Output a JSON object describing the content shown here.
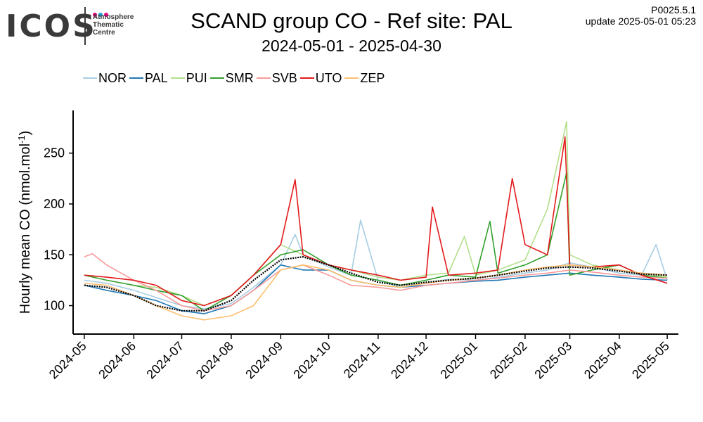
{
  "logo": {
    "word": "ICOS",
    "line1": "Atmosphere",
    "line2": "Thematic",
    "line3": "Centre",
    "dot_colors": [
      "#e5007e",
      "#1fa2e0",
      "#e5007e"
    ]
  },
  "header": {
    "version": "P0025.5.1",
    "update": "update  2025-05-01 05:23"
  },
  "chart_data": {
    "type": "line",
    "title": "SCAND group CO - Ref site: PAL",
    "subtitle": "2024-05-01 - 2025-04-30",
    "ylabel": "Hourly mean  CO (nmol.mol",
    "ylabel_sup": "-1",
    "ylabel_close": ")",
    "xlabel": "",
    "ylim": [
      72,
      292
    ],
    "xlim": [
      "2024-04-24",
      "2025-05-08"
    ],
    "y_ticks": [
      100,
      150,
      200,
      250
    ],
    "x_ticks": [
      "2024-05-01",
      "2024-06-01",
      "2024-07-01",
      "2024-08-01",
      "2024-09-01",
      "2024-10-01",
      "2024-11-01",
      "2024-12-01",
      "2025-01-01",
      "2025-02-01",
      "2025-03-01",
      "2025-04-01",
      "2025-05-01"
    ],
    "x_tick_labels": [
      "2024-05",
      "2024-06",
      "2024-07",
      "2024-08",
      "2024-09",
      "2024-10",
      "2024-11",
      "2024-12",
      "2025-01",
      "2025-02",
      "2025-03",
      "2025-04",
      "2025-05"
    ],
    "grid": false,
    "legend": {
      "position": "top-left"
    },
    "reference_line": {
      "name": "",
      "color": "#000000",
      "style": "dotted-thick",
      "x": [
        "2024-05-01",
        "2024-05-15",
        "2024-06-01",
        "2024-06-15",
        "2024-07-01",
        "2024-07-15",
        "2024-08-01",
        "2024-08-15",
        "2024-09-01",
        "2024-09-15",
        "2024-10-01",
        "2024-10-15",
        "2024-11-01",
        "2024-11-15",
        "2024-12-01",
        "2024-12-15",
        "2025-01-01",
        "2025-01-15",
        "2025-02-01",
        "2025-02-15",
        "2025-03-01",
        "2025-03-15",
        "2025-04-01",
        "2025-04-15",
        "2025-05-01"
      ],
      "y": [
        120,
        118,
        110,
        100,
        95,
        95,
        105,
        125,
        145,
        148,
        140,
        132,
        123,
        120,
        123,
        125,
        127,
        130,
        134,
        137,
        138,
        137,
        134,
        131,
        130
      ]
    },
    "series": [
      {
        "name": "NOR",
        "color": "#a6cee3",
        "x": [
          "2024-05-01",
          "2024-05-15",
          "2024-06-01",
          "2024-06-15",
          "2024-07-01",
          "2024-07-15",
          "2024-08-01",
          "2024-08-15",
          "2024-09-01",
          "2024-09-10",
          "2024-09-15",
          "2024-10-01",
          "2024-10-15",
          "2024-10-21",
          "2024-11-01",
          "2024-11-15",
          "2024-12-01",
          "2024-12-15",
          "2025-01-01",
          "2025-01-15",
          "2025-02-01",
          "2025-02-15",
          "2025-03-01",
          "2025-03-15",
          "2025-04-01",
          "2025-04-15",
          "2025-04-24",
          "2025-05-01"
        ],
        "y": [
          125,
          122,
          115,
          108,
          100,
          97,
          102,
          118,
          140,
          170,
          150,
          138,
          130,
          184,
          125,
          118,
          122,
          126,
          125,
          128,
          132,
          135,
          142,
          138,
          132,
          130,
          160,
          125
        ]
      },
      {
        "name": "PAL",
        "color": "#1f78b4",
        "x": [
          "2024-05-01",
          "2024-05-15",
          "2024-06-01",
          "2024-06-15",
          "2024-07-01",
          "2024-07-15",
          "2024-08-01",
          "2024-08-15",
          "2024-09-01",
          "2024-09-15",
          "2024-10-01",
          "2024-10-15",
          "2024-11-01",
          "2024-11-15",
          "2024-12-01",
          "2024-12-15",
          "2025-01-01",
          "2025-01-15",
          "2025-02-01",
          "2025-02-15",
          "2025-03-01",
          "2025-03-15",
          "2025-04-01",
          "2025-04-15",
          "2025-05-01"
        ],
        "y": [
          120,
          115,
          110,
          105,
          95,
          92,
          100,
          115,
          140,
          135,
          135,
          125,
          120,
          118,
          120,
          122,
          124,
          125,
          128,
          130,
          132,
          130,
          128,
          126,
          125
        ]
      },
      {
        "name": "PUI",
        "color": "#b2df8a",
        "x": [
          "2024-05-01",
          "2024-05-15",
          "2024-06-01",
          "2024-06-15",
          "2024-07-01",
          "2024-07-15",
          "2024-08-01",
          "2024-08-15",
          "2024-09-01",
          "2024-09-15",
          "2024-10-01",
          "2024-10-15",
          "2024-11-01",
          "2024-11-15",
          "2024-12-01",
          "2024-12-15",
          "2024-12-25",
          "2025-01-01",
          "2025-01-15",
          "2025-02-01",
          "2025-02-15",
          "2025-02-27",
          "2025-03-01",
          "2025-03-15",
          "2025-04-01",
          "2025-04-15",
          "2025-05-01"
        ],
        "y": [
          130,
          125,
          120,
          118,
          110,
          100,
          110,
          130,
          160,
          150,
          140,
          135,
          128,
          125,
          130,
          132,
          168,
          130,
          135,
          145,
          195,
          281,
          150,
          140,
          135,
          132,
          128
        ]
      },
      {
        "name": "SMR",
        "color": "#33a02c",
        "x": [
          "2024-05-01",
          "2024-05-15",
          "2024-06-01",
          "2024-06-15",
          "2024-07-01",
          "2024-07-15",
          "2024-08-01",
          "2024-08-15",
          "2024-09-01",
          "2024-09-15",
          "2024-10-01",
          "2024-10-15",
          "2024-11-01",
          "2024-11-15",
          "2024-12-01",
          "2024-12-15",
          "2025-01-01",
          "2025-01-10",
          "2025-01-15",
          "2025-02-01",
          "2025-02-15",
          "2025-02-27",
          "2025-03-01",
          "2025-03-15",
          "2025-04-01",
          "2025-04-15",
          "2025-05-01"
        ],
        "y": [
          130,
          125,
          120,
          115,
          110,
          95,
          110,
          130,
          150,
          155,
          140,
          130,
          125,
          120,
          125,
          130,
          128,
          183,
          132,
          140,
          150,
          231,
          130,
          135,
          140,
          130,
          127
        ]
      },
      {
        "name": "SVB",
        "color": "#fb9a99",
        "x": [
          "2024-05-01",
          "2024-05-06",
          "2024-05-15",
          "2024-06-01",
          "2024-06-15",
          "2024-07-01",
          "2024-07-15",
          "2024-08-01",
          "2024-08-15",
          "2024-09-01",
          "2024-09-15",
          "2024-10-01",
          "2024-10-15",
          "2024-11-01",
          "2024-11-15",
          "2024-12-01",
          "2024-12-15",
          "2025-01-01",
          "2025-01-15",
          "2025-02-01",
          "2025-02-15",
          "2025-03-01",
          "2025-03-15",
          "2025-04-01",
          "2025-04-15",
          "2025-05-01"
        ],
        "y": [
          148,
          151,
          140,
          125,
          115,
          100,
          95,
          100,
          115,
          135,
          140,
          130,
          120,
          118,
          115,
          120,
          122,
          125,
          127,
          130,
          132,
          135,
          133,
          130,
          128,
          127
        ]
      },
      {
        "name": "UTO",
        "color": "#e31a1c",
        "x": [
          "2024-05-01",
          "2024-05-15",
          "2024-06-01",
          "2024-06-15",
          "2024-07-01",
          "2024-07-15",
          "2024-08-01",
          "2024-08-15",
          "2024-09-01",
          "2024-09-10",
          "2024-09-15",
          "2024-10-01",
          "2024-10-15",
          "2024-11-01",
          "2024-11-15",
          "2024-12-01",
          "2024-12-05",
          "2024-12-15",
          "2025-01-01",
          "2025-01-15",
          "2025-01-24",
          "2025-02-01",
          "2025-02-15",
          "2025-02-26",
          "2025-03-01",
          "2025-03-15",
          "2025-04-01",
          "2025-04-15",
          "2025-05-01"
        ],
        "y": [
          130,
          128,
          125,
          120,
          105,
          100,
          110,
          130,
          160,
          224,
          150,
          140,
          135,
          130,
          125,
          128,
          197,
          130,
          132,
          135,
          225,
          160,
          150,
          266,
          140,
          138,
          140,
          130,
          122
        ]
      },
      {
        "name": "ZEP",
        "color": "#fdbf6f",
        "x": [
          "2024-05-01",
          "2024-05-15",
          "2024-06-01",
          "2024-06-15",
          "2024-07-01",
          "2024-07-15",
          "2024-08-01",
          "2024-08-15",
          "2024-09-01",
          "2024-09-15",
          "2024-10-01",
          "2024-10-15",
          "2024-11-01",
          "2024-11-15",
          "2024-12-01",
          "2024-12-15",
          "2025-01-01",
          "2025-01-15",
          "2025-02-01",
          "2025-02-15",
          "2025-03-01",
          "2025-03-15",
          "2025-04-01",
          "2025-04-15",
          "2025-05-01"
        ],
        "y": [
          122,
          120,
          110,
          100,
          90,
          86,
          90,
          100,
          135,
          140,
          135,
          125,
          120,
          118,
          122,
          125,
          127,
          130,
          135,
          138,
          140,
          138,
          135,
          132,
          130
        ]
      }
    ]
  }
}
